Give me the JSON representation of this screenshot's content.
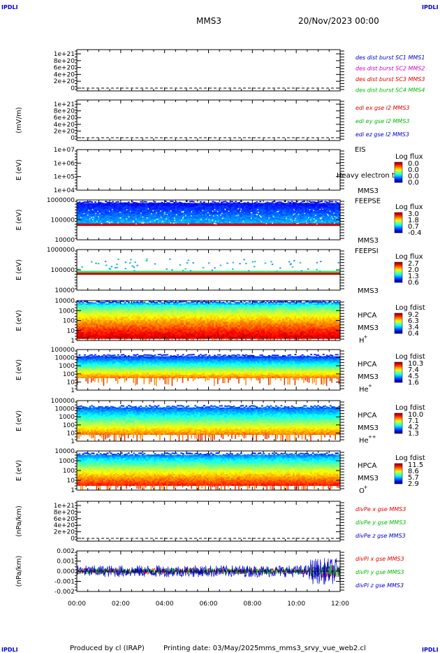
{
  "corner_marks": [
    "IPDLI",
    "IPDLI",
    "IPDLI",
    "IPDLI"
  ],
  "header": {
    "spacecraft": "MMS3",
    "date": "20/Nov/2023 00:00"
  },
  "footer": {
    "produced_by": "Produced by cl (IRAP)",
    "printing_date": "Printing date: 03/May/2025",
    "script": "mms_mms3_srvy_vue_web2.cl"
  },
  "time_axis": {
    "ticks": [
      "00:00",
      "02:00",
      "04:00",
      "06:00",
      "08:00",
      "10:00",
      "12:00"
    ]
  },
  "colors": {
    "red": "#dd0000",
    "magenta": "#cc00cc",
    "green": "#00bb00",
    "blue": "#0000cc",
    "blue_line": "#0000ff",
    "band_red": "#cc0000",
    "band_green": "#00cc00"
  },
  "chart_data": [
    {
      "id": "p1",
      "type": "line",
      "ylabel": "",
      "yticks": [
        "1e+21",
        "8e+20",
        "6e+20",
        "4e+20",
        "2e+20",
        "0"
      ],
      "legend": [
        {
          "text": "des dist burst SC1 MMS1",
          "color": "blue"
        },
        {
          "text": "des dist burst SC2 MMS2",
          "color": "magenta"
        },
        {
          "text": "des dist burst SC3 MMS3",
          "color": "red"
        },
        {
          "text": "des dist burst SC4 MMS4",
          "color": "green"
        }
      ],
      "series": [],
      "zero_line": true
    },
    {
      "id": "p2",
      "type": "line",
      "ylabel": "(mV/m)",
      "yticks": [
        "1e+21",
        "8e+20",
        "6e+20",
        "4e+20",
        "2e+20",
        "0"
      ],
      "legend": [
        {
          "text": "edi ex gse l2 MMS3",
          "color": "red"
        },
        {
          "text": "edi ey gse l2 MMS3",
          "color": "green"
        },
        {
          "text": "edi ez gse l2 MMS3",
          "color": "blue"
        }
      ],
      "series": [],
      "zero_line": true
    },
    {
      "id": "p3",
      "type": "heatmap",
      "ylabel": "E (eV)",
      "yticks": [
        "1e+07",
        "1e+06",
        "1e+05",
        "1e+04"
      ],
      "instrument": [
        "EIS",
        "MMS3"
      ],
      "overlay_text": "Heavy electron to",
      "colorbar": {
        "title": "Log flux",
        "ticks": [
          "0.0",
          "0.0",
          "0.0",
          "0.0"
        ]
      },
      "ylim_log": [
        4,
        7
      ],
      "data": "none"
    },
    {
      "id": "p4",
      "type": "heatmap",
      "ylabel": "E (eV)",
      "yticks": [
        "1000000",
        "100000",
        "10000"
      ],
      "instrument": [
        "FEEPSE",
        "MMS3"
      ],
      "colorbar": {
        "title": "Log flux",
        "ticks": [
          "3.0",
          "1.8",
          "0.7",
          "-0.4"
        ]
      },
      "ylim_log": [
        4,
        6
      ],
      "fill_log": [
        4.7,
        5.9
      ],
      "red_band_log": [
        4.7,
        4.82
      ]
    },
    {
      "id": "p5",
      "type": "heatmap",
      "ylabel": "E (eV)",
      "yticks": [
        "1000000",
        "100000",
        "10000"
      ],
      "instrument": [
        "FEEPSI",
        "MMS3"
      ],
      "colorbar": {
        "title": "Log flux",
        "ticks": [
          "2.7",
          "2.0",
          "1.3",
          "0.6"
        ]
      },
      "ylim_log": [
        4,
        6
      ],
      "band_log": [
        4.82,
        4.95
      ],
      "red_band_log": [
        4.8,
        4.86
      ]
    },
    {
      "id": "p6",
      "type": "heatmap",
      "ylabel": "E (eV)",
      "yticks": [
        "10000",
        "1000",
        "100",
        "10",
        "1"
      ],
      "instrument": [
        "HPCA",
        "MMS3",
        "H",
        "+"
      ],
      "colorbar": {
        "title": "Log fdist",
        "ticks": [
          "9.2",
          "6.3",
          "3.4",
          "0.4"
        ]
      },
      "ylim_log": [
        0,
        4.4
      ],
      "fill_log": [
        0.2,
        4.3
      ],
      "profile": "H+"
    },
    {
      "id": "p7",
      "type": "heatmap",
      "ylabel": "E (eV)",
      "yticks": [
        "100000",
        "10000",
        "1000",
        "100",
        "10",
        "1"
      ],
      "instrument": [
        "HPCA",
        "MMS3",
        "He",
        "+"
      ],
      "colorbar": {
        "title": "Log fdist",
        "ticks": [
          "10.3",
          "7.4",
          "4.5",
          "1.6"
        ]
      },
      "ylim_log": [
        0,
        5
      ],
      "fill_log": [
        1.5,
        4.3
      ],
      "profile": "He+"
    },
    {
      "id": "p8",
      "type": "heatmap",
      "ylabel": "E (eV)",
      "yticks": [
        "100000",
        "10000",
        "1000",
        "100",
        "10",
        "1"
      ],
      "instrument": [
        "HPCA",
        "MMS3",
        "He",
        "++"
      ],
      "colorbar": {
        "title": "Log fdist",
        "ticks": [
          "10.0",
          "7.1",
          "4.2",
          "1.3"
        ]
      },
      "ylim_log": [
        0,
        5
      ],
      "fill_log": [
        0.8,
        4.3
      ],
      "profile": "He++"
    },
    {
      "id": "p9",
      "type": "heatmap",
      "ylabel": "E (eV)",
      "yticks": [
        "10000",
        "1000",
        "100",
        "10",
        "1"
      ],
      "instrument": [
        "HPCA",
        "MMS3",
        "O",
        "+"
      ],
      "colorbar": {
        "title": "Log fdist",
        "ticks": [
          "11.5",
          "8.6",
          "5.7",
          "2.9"
        ]
      },
      "ylim_log": [
        0,
        4.4
      ],
      "fill_log": [
        0.5,
        4.1
      ],
      "profile": "O+"
    },
    {
      "id": "p10",
      "type": "line",
      "ylabel": "(nPa/km)",
      "yticks": [
        "1e+21",
        "8e+20",
        "6e+20",
        "4e+20",
        "2e+20",
        "0"
      ],
      "legend": [
        {
          "text": "divPe x gse MMS3",
          "color": "red"
        },
        {
          "text": "divPe y gse MMS3",
          "color": "green"
        },
        {
          "text": "divPe z gse MMS3",
          "color": "blue"
        }
      ],
      "series": [],
      "zero_line": true
    },
    {
      "id": "p11",
      "type": "line",
      "ylabel": "(nPa/km)",
      "yticks": [
        "0.002",
        "0.001",
        "0.000",
        "-0.001",
        "-0.002"
      ],
      "ylim": [
        -0.0027,
        0.0027
      ],
      "legend": [
        {
          "text": "divPi x gse MMS3",
          "color": "red"
        },
        {
          "text": "divPi y gse MMS3",
          "color": "green"
        },
        {
          "text": "divPi z gse MMS3",
          "color": "blue"
        }
      ],
      "series": [
        {
          "name": "divPi x gse MMS3",
          "color": "red",
          "amplitude": 0.0004
        },
        {
          "name": "divPi y gse MMS3",
          "color": "green",
          "amplitude": 0.0004
        },
        {
          "name": "divPi z gse MMS3",
          "color": "blue",
          "amplitude": 0.0008
        }
      ],
      "zero_line": true
    }
  ]
}
